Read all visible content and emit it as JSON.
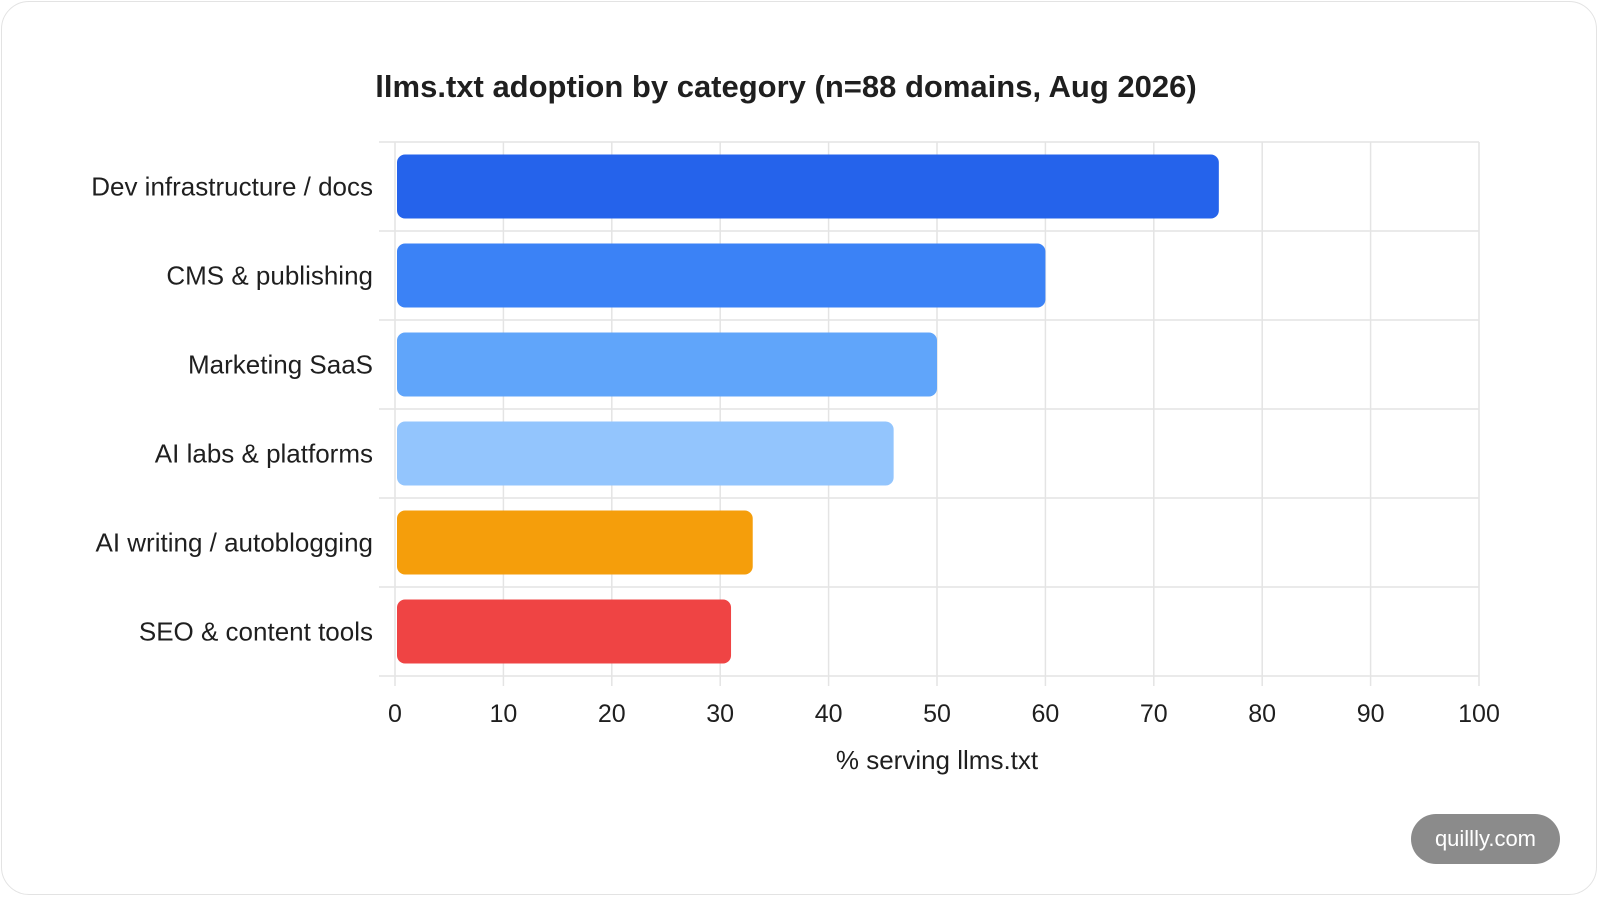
{
  "chart_data": {
    "type": "bar",
    "orientation": "horizontal",
    "title": "llms.txt adoption by category (n=88 domains, Aug 2026)",
    "xlabel": "% serving llms.txt",
    "ylabel": "",
    "xlim": [
      0,
      100
    ],
    "xticks": [
      0,
      10,
      20,
      30,
      40,
      50,
      60,
      70,
      80,
      90,
      100
    ],
    "grid": true,
    "legend": "none",
    "categories": [
      "Dev infrastructure / docs",
      "CMS & publishing",
      "Marketing SaaS",
      "AI labs & platforms",
      "AI writing / autoblogging",
      "SEO & content tools"
    ],
    "values": [
      76,
      60,
      50,
      46,
      33,
      31
    ],
    "colors": [
      "#2563eb",
      "#3b82f6",
      "#60a5fa",
      "#93c5fd",
      "#f59e0b",
      "#ef4444"
    ]
  },
  "watermark": {
    "text": "quillly.com"
  }
}
